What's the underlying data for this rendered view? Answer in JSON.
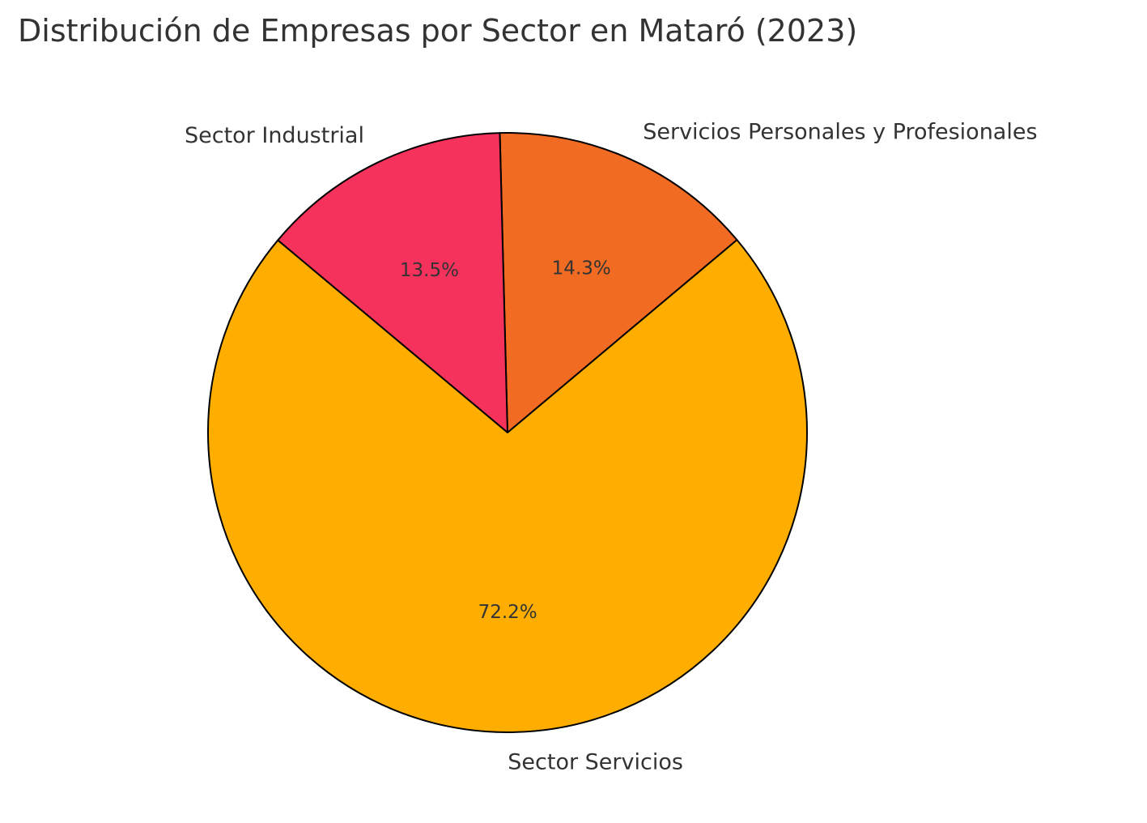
{
  "chart_data": {
    "type": "pie",
    "title": "Distribución de Empresas por Sector en Mataró (2023)",
    "slices": [
      {
        "label": "Servicios Personales y Profesionales",
        "value": 14.3,
        "pct_label": "14.3%",
        "color": "#F26B22"
      },
      {
        "label": "Sector Industrial",
        "value": 13.5,
        "pct_label": "13.5%",
        "color": "#F5325B"
      },
      {
        "label": "Sector Servicios",
        "value": 72.2,
        "pct_label": "72.2%",
        "color": "#FFAE00"
      }
    ],
    "edge_color": "#000000"
  }
}
